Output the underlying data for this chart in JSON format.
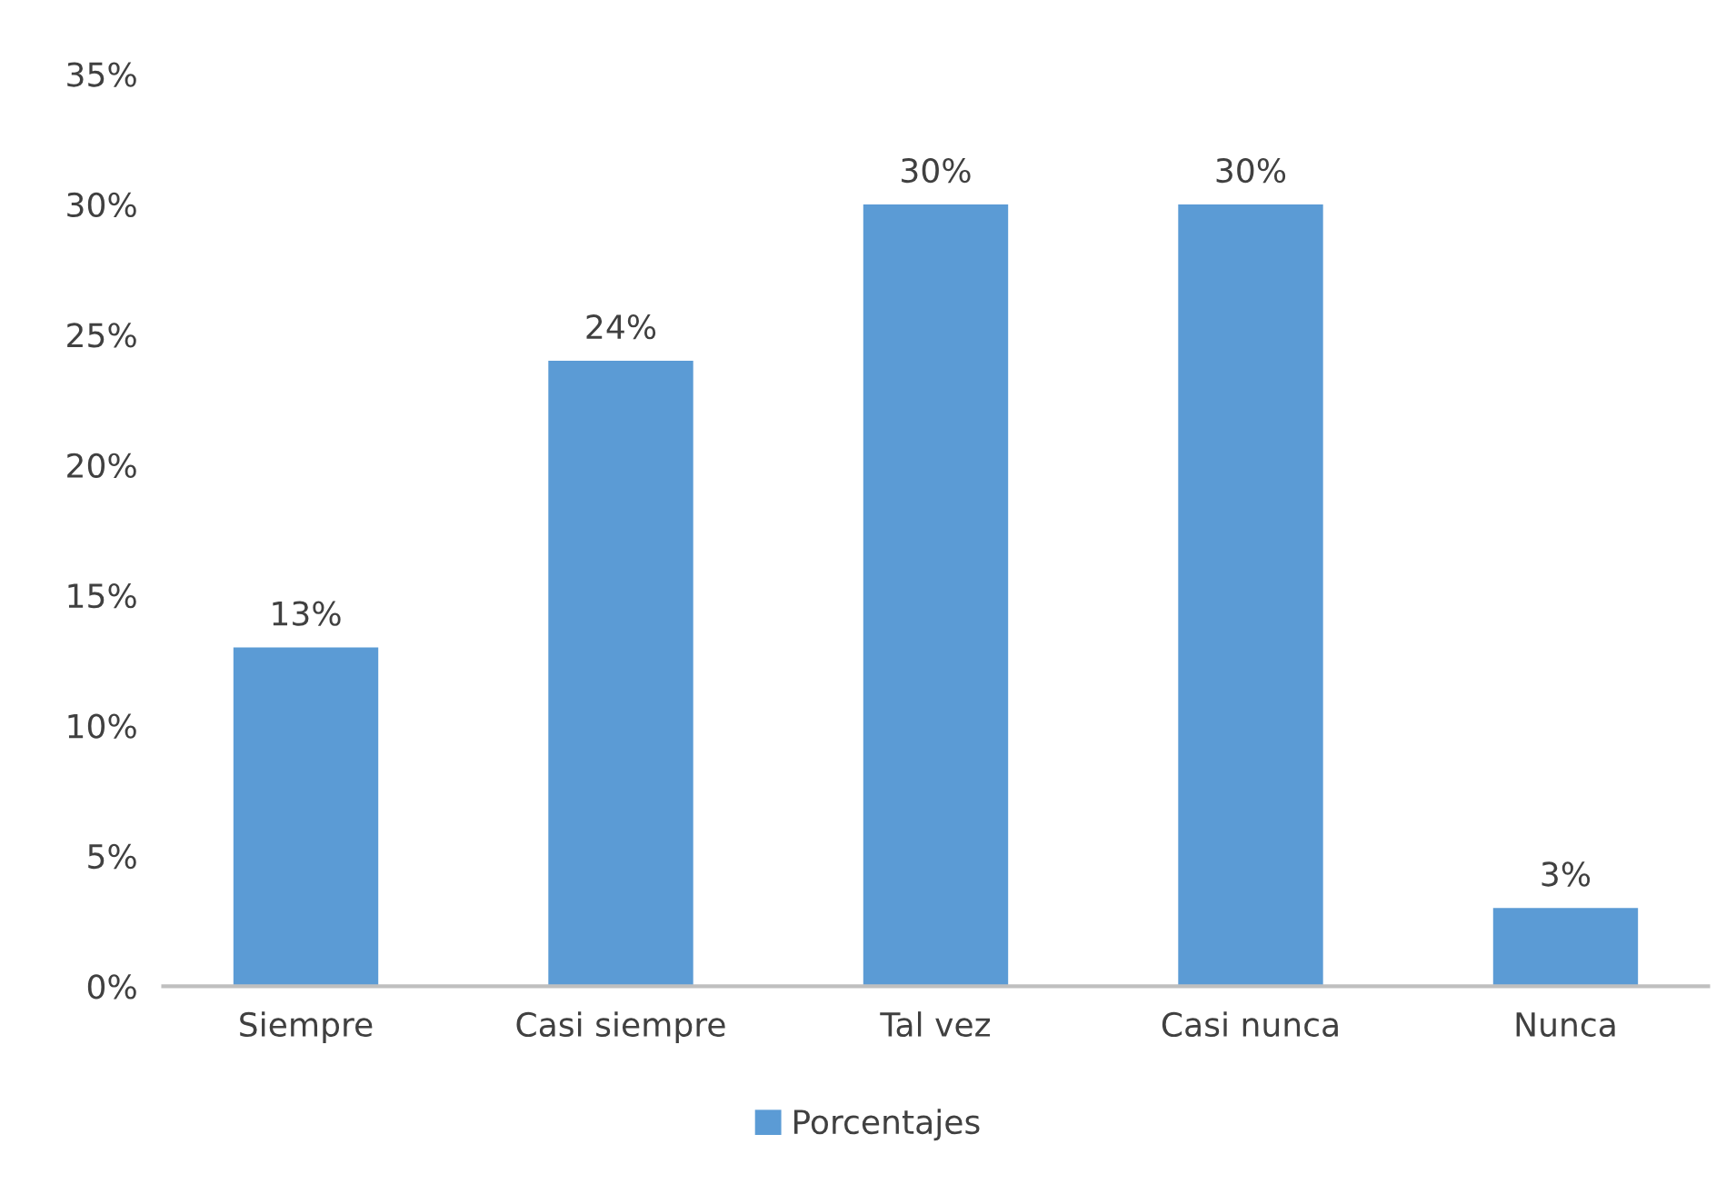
{
  "chart_data": {
    "type": "bar",
    "categories": [
      "Siempre",
      "Casi siempre",
      "Tal vez",
      "Casi nunca",
      "Nunca"
    ],
    "series": [
      {
        "name": "Porcentajes",
        "color": "#5b9bd5",
        "values": [
          13,
          24,
          30,
          30,
          3
        ]
      }
    ],
    "value_labels": [
      "13%",
      "24%",
      "30%",
      "30%",
      "3%"
    ],
    "ylim": [
      0,
      35
    ],
    "yticks": [
      {
        "value": 0,
        "label": "0%"
      },
      {
        "value": 5,
        "label": "5%"
      },
      {
        "value": 10,
        "label": "10%"
      },
      {
        "value": 15,
        "label": "15%"
      },
      {
        "value": 20,
        "label": "20%"
      },
      {
        "value": 25,
        "label": "25%"
      },
      {
        "value": 30,
        "label": "30%"
      },
      {
        "value": 35,
        "label": "35%"
      }
    ],
    "grid": false,
    "legend": "bottom"
  }
}
